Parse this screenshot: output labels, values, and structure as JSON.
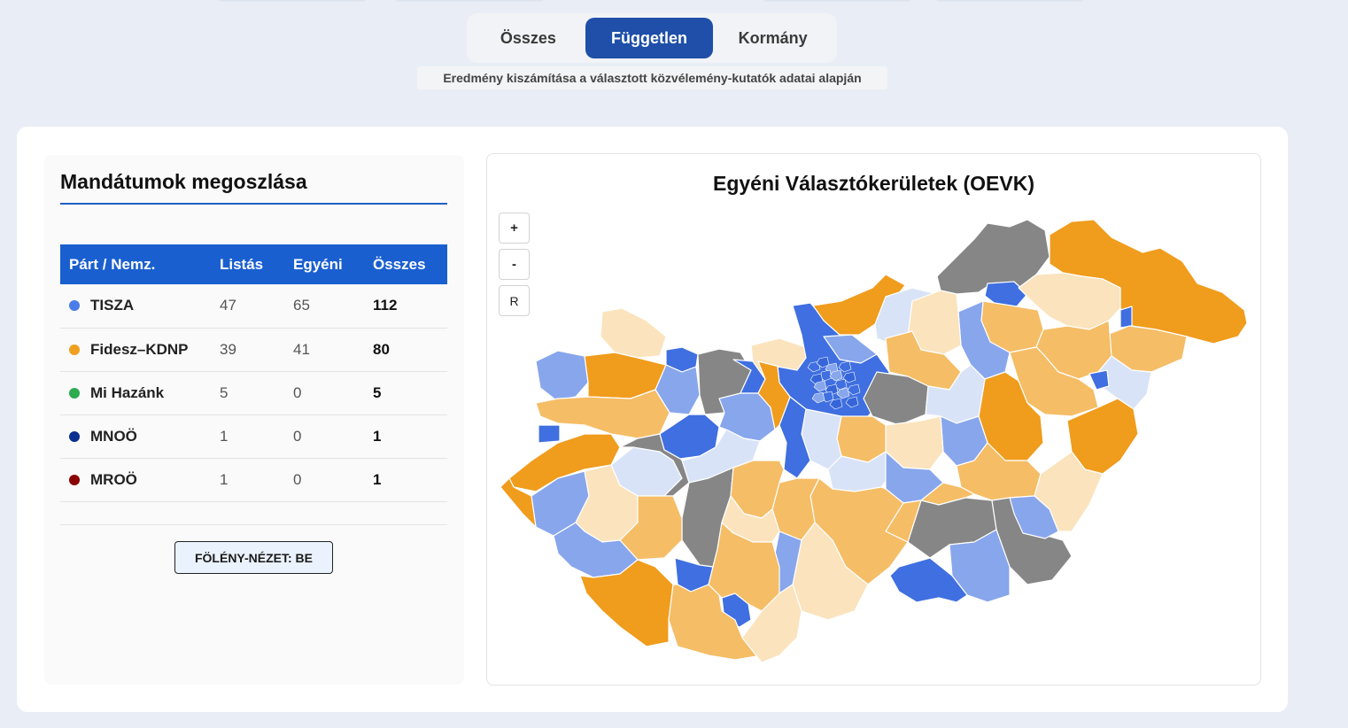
{
  "tabs": [
    {
      "label": "Összes",
      "active": false
    },
    {
      "label": "Független",
      "active": true
    },
    {
      "label": "Kormány",
      "active": false
    }
  ],
  "subtitle_note": "Eredmény kiszámítása a választott közvélemény-kutatók adatai alapján",
  "seats_panel": {
    "title": "Mandátumok megoszlása",
    "columns": [
      "Párt / Nemz.",
      "Listás",
      "Egyéni",
      "Összes"
    ],
    "rows": [
      {
        "party": "TISZA",
        "color": "#4a7de8",
        "list": "47",
        "single": "65",
        "total": "112"
      },
      {
        "party": "Fidesz–KDNP",
        "color": "#f0a020",
        "list": "39",
        "single": "41",
        "total": "80"
      },
      {
        "party": "Mi Hazánk",
        "color": "#2eaa4f",
        "list": "5",
        "single": "0",
        "total": "5"
      },
      {
        "party": "MNOÖ",
        "color": "#0b2f8f",
        "list": "1",
        "single": "0",
        "total": "1"
      },
      {
        "party": "MROÖ",
        "color": "#8a0000",
        "list": "1",
        "single": "0",
        "total": "1"
      }
    ],
    "dominance_button": "FÖLÉNY-NÉZET: BE"
  },
  "map_panel": {
    "title": "Egyéni Választókerületek (OEVK)",
    "zoom_in": "+",
    "zoom_out": "-",
    "reset": "R",
    "legend_colors": {
      "tisza_strong": "#3f6fe0",
      "tisza_mid": "#88a6ec",
      "tisza_light": "#d9e3f7",
      "fidesz_strong": "#f09c1c",
      "fidesz_mid": "#f5bd66",
      "fidesz_light": "#fbe3bd",
      "other": "#868686"
    }
  }
}
